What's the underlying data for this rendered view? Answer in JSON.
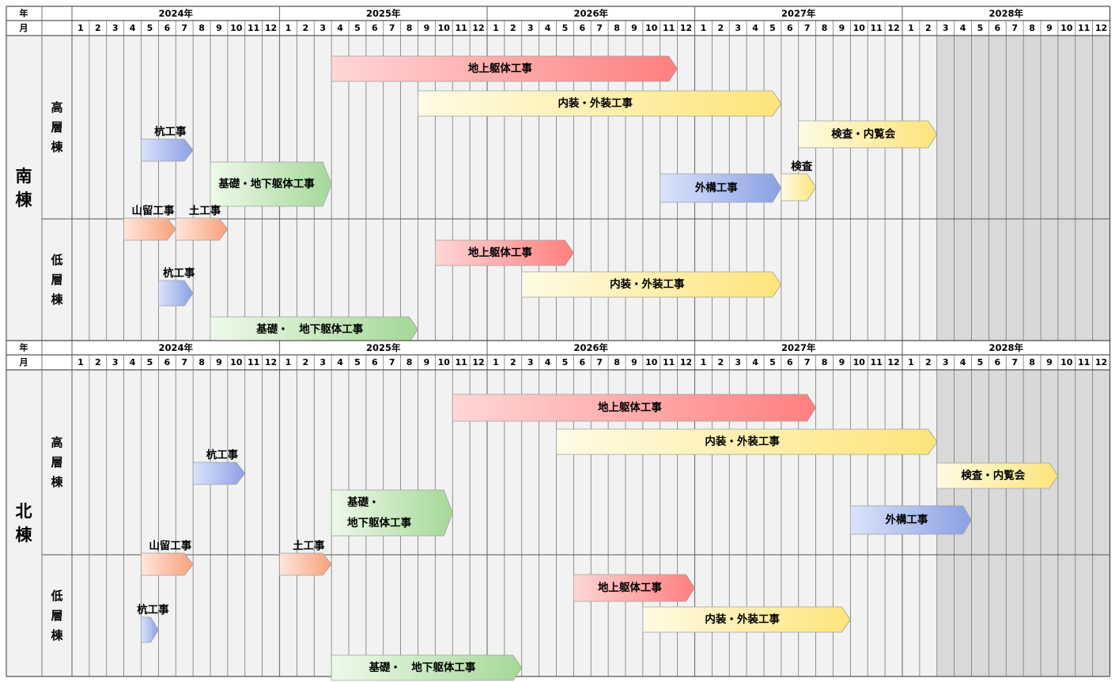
{
  "header": {
    "year_label": "年",
    "month_label": "月",
    "years": [
      "2024年",
      "2025年",
      "2026年",
      "2027年",
      "2028年"
    ],
    "months": [
      "1",
      "2",
      "3",
      "4",
      "5",
      "6",
      "7",
      "8",
      "9",
      "10",
      "11",
      "12"
    ]
  },
  "colors": {
    "structure": "#ff8a8a",
    "interior": "#fde98a",
    "pile": "#93a7e6",
    "earth": "#f9a882",
    "foundation": "#a8d99a",
    "inspection": "#fde98a",
    "exterior": "#93a7e6",
    "grid": "#888888",
    "shaded": "#d9d9d9",
    "cell": "#f2f2f2"
  },
  "buildings": [
    {
      "name": "南棟",
      "blocks": [
        {
          "name": "高層棟",
          "tasks": [
            {
              "label": "地上躯体工事",
              "kind": "structure",
              "start": "2025-04",
              "end": "2026-11",
              "row": 0,
              "label_pos": "inside"
            },
            {
              "label": "内装・外装工事",
              "kind": "interior",
              "start": "2025-09",
              "end": "2027-05",
              "row": 1,
              "label_pos": "inside"
            },
            {
              "label": "検査・内覧会",
              "kind": "inspection",
              "start": "2027-07",
              "end": "2028-02",
              "row": 2,
              "label_pos": "inside"
            },
            {
              "label": "杭工事",
              "kind": "pile",
              "start": "2024-05",
              "end": "2024-07",
              "row": 3,
              "label_pos": "above"
            },
            {
              "label": "基礎・地下躯体工事",
              "kind": "foundation",
              "start": "2024-09",
              "end": "2025-03",
              "row": 4,
              "label_pos": "inside"
            },
            {
              "label": "外構工事",
              "kind": "exterior",
              "start": "2026-11",
              "end": "2027-05",
              "row": 4,
              "label_pos": "inside"
            },
            {
              "label": "検査",
              "kind": "inspection",
              "start": "2027-06",
              "end": "2027-07",
              "row": 4,
              "label_pos": "above"
            },
            {
              "label": "山留工事",
              "kind": "earth",
              "start": "2024-04",
              "end": "2024-06",
              "row": 5,
              "label_pos": "above"
            },
            {
              "label": "土工事",
              "kind": "earth",
              "start": "2024-07",
              "end": "2024-09",
              "row": 5,
              "label_pos": "above"
            }
          ]
        },
        {
          "name": "低層棟",
          "tasks": [
            {
              "label": "地上躯体工事",
              "kind": "structure",
              "start": "2025-10",
              "end": "2026-05",
              "row": 0,
              "label_pos": "inside"
            },
            {
              "label": "内装・外装工事",
              "kind": "interior",
              "start": "2026-03",
              "end": "2027-05",
              "row": 1,
              "label_pos": "inside"
            },
            {
              "label": "杭工事",
              "kind": "pile",
              "start": "2024-06",
              "end": "2024-07",
              "row": 2,
              "label_pos": "above"
            },
            {
              "label": "基礎・　地下躯体工事",
              "kind": "foundation",
              "start": "2024-09",
              "end": "2025-08",
              "row": 3,
              "label_pos": "inside"
            }
          ]
        }
      ]
    },
    {
      "name": "北棟",
      "blocks": [
        {
          "name": "高層棟",
          "tasks": [
            {
              "label": "地上躯体工事",
              "kind": "structure",
              "start": "2025-11",
              "end": "2027-07",
              "row": 0,
              "label_pos": "inside"
            },
            {
              "label": "内装・外装工事",
              "kind": "interior",
              "start": "2026-05",
              "end": "2028-02",
              "row": 1,
              "label_pos": "inside"
            },
            {
              "label": "杭工事",
              "kind": "pile",
              "start": "2024-08",
              "end": "2024-10",
              "row": 2,
              "label_pos": "above"
            },
            {
              "label": "検査・内覧会",
              "kind": "inspection",
              "start": "2028-03",
              "end": "2028-09",
              "row": 2,
              "label_pos": "inside"
            },
            {
              "label": "基礎・\n地下躯体工事",
              "kind": "foundation",
              "start": "2025-04",
              "end": "2025-10",
              "row": 3,
              "label_pos": "inside"
            },
            {
              "label": "外構工事",
              "kind": "exterior",
              "start": "2027-10",
              "end": "2028-04",
              "row": 4,
              "label_pos": "inside"
            },
            {
              "label": "山留工事",
              "kind": "earth",
              "start": "2024-05",
              "end": "2024-07",
              "row": 5,
              "label_pos": "above"
            },
            {
              "label": "土工事",
              "kind": "earth",
              "start": "2025-01",
              "end": "2025-03",
              "row": 5,
              "label_pos": "above"
            }
          ]
        },
        {
          "name": "低層棟",
          "tasks": [
            {
              "label": "地上躯体工事",
              "kind": "structure",
              "start": "2026-06",
              "end": "2026-12",
              "row": 0,
              "label_pos": "inside"
            },
            {
              "label": "内装・外装工事",
              "kind": "interior",
              "start": "2026-10",
              "end": "2027-09",
              "row": 1,
              "label_pos": "inside"
            },
            {
              "label": "杭工事",
              "kind": "pile",
              "start": "2024-05",
              "end": "2024-05",
              "row": 2,
              "label_pos": "above"
            },
            {
              "label": "基礎・　地下躯体工事",
              "kind": "foundation",
              "start": "2025-04",
              "end": "2026-02",
              "row": 3,
              "label_pos": "inside"
            }
          ]
        }
      ]
    }
  ],
  "shaded_months": [
    "2028-03",
    "2028-12"
  ]
}
